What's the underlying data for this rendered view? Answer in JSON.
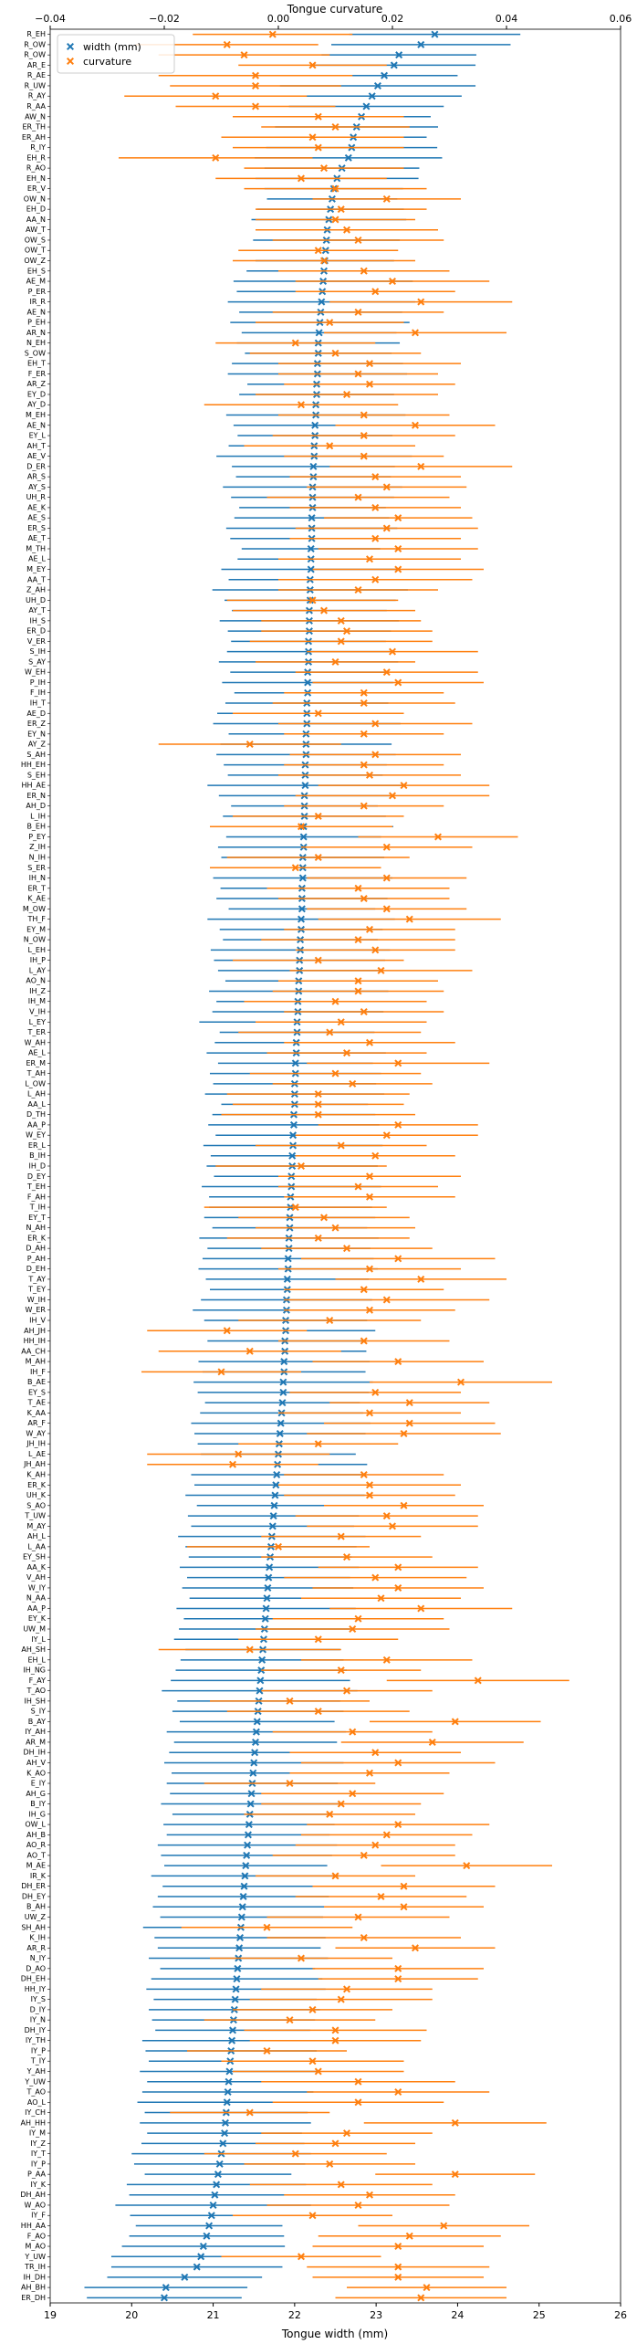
{
  "chart_data": {
    "type": "errorbar",
    "x_label": "Tongue width (mm)",
    "x2_label": "Tongue curvature",
    "legend": "upper left",
    "xlim": [
      19,
      26
    ],
    "xticks": [
      19,
      20,
      21,
      22,
      23,
      24,
      25,
      26
    ],
    "x2lim": [
      -0.04,
      0.06
    ],
    "x2ticks": [
      {
        "value": -0.04,
        "label": "−0.04"
      },
      {
        "value": -0.02,
        "label": "−0.02"
      },
      {
        "value": 0,
        "label": "0.00"
      },
      0.02,
      0.04,
      0.06
    ],
    "categories": [
      "R_EH",
      "R_OW",
      "R_OW",
      "AR_E",
      "R_AE",
      "R_UW",
      "R_AY",
      "R_AA",
      "AW_N",
      "ER_TH",
      "ER_AH",
      "R_IY",
      "EH_R",
      "R_AO",
      "EH_N",
      "ER_V",
      "OW_N",
      "EH_D",
      "AA_N",
      "AW_T",
      "OW_S",
      "OW_T",
      "OW_Z",
      "EH_S",
      "AE_M",
      "P_ER",
      "IR_R",
      "AE_N",
      "P_EH",
      "AR_N",
      "N_EH",
      "S_OW",
      "EH_T",
      "F_ER",
      "AR_Z",
      "EY_D",
      "AY_D",
      "M_EH",
      "AE_N",
      "EY_L",
      "AH_T",
      "AE_V",
      "D_ER",
      "AR_S",
      "AY_S",
      "UH_R",
      "AE_K",
      "AE_S",
      "ER_S",
      "AE_T",
      "M_TH",
      "AE_L",
      "M_EY",
      "AA_T",
      "Z_AH",
      "UH_D",
      "AY_T",
      "IH_S",
      "ER_D",
      "V_ER",
      "S_IH",
      "S_AY",
      "W_EH",
      "P_IH",
      "F_IH",
      "IH_T",
      "AE_D",
      "ER_Z",
      "EY_N",
      "AY_Z",
      "S_AH",
      "HH_EH",
      "S_EH",
      "HH_AE",
      "ER_N",
      "AH_D",
      "L_IH",
      "B_EH",
      "P_EY",
      "Z_IH",
      "N_IH",
      "S_ER",
      "IH_N",
      "ER_T",
      "K_AE",
      "M_OW",
      "TH_F",
      "EY_M",
      "N_OW",
      "L_EH",
      "IH_P",
      "L_AY",
      "AO_N",
      "IH_Z",
      "IH_M",
      "V_IH",
      "L_EY",
      "T_ER",
      "W_AH",
      "AE_L",
      "ER_M",
      "T_AH",
      "L_OW",
      "L_AH",
      "AA_L",
      "D_TH",
      "AA_P",
      "W_EY",
      "ER_L",
      "B_IH",
      "IH_D",
      "D_EY",
      "T_EH",
      "F_AH",
      "T_IH",
      "EY_T",
      "N_AH",
      "ER_K",
      "D_AH",
      "P_AH",
      "D_EH",
      "T_AY",
      "T_EY",
      "W_IH",
      "W_ER",
      "IH_V",
      "AH_JH",
      "HH_IH",
      "AA_CH",
      "M_AH",
      "IH_F",
      "B_AE",
      "EY_S",
      "T_AE",
      "K_AA",
      "AR_F",
      "W_AY",
      "JH_IH",
      "L_AE",
      "JH_AH",
      "K_AH",
      "ER_K",
      "UH_K",
      "S_AO",
      "T_UW",
      "M_AY",
      "AH_L",
      "L_AA",
      "EY_SH",
      "AA_K",
      "V_AH",
      "W_IY",
      "N_AA",
      "AA_P",
      "EY_K",
      "UW_M",
      "IY_L",
      "AH_SH",
      "EH_L",
      "IH_NG",
      "F_AY",
      "T_AO",
      "IH_SH",
      "S_IY",
      "B_AY",
      "IY_AH",
      "AR_M",
      "DH_IH",
      "AH_V",
      "K_AO",
      "E_IY",
      "AH_G",
      "B_IY",
      "IH_G",
      "OW_L",
      "AH_B",
      "AO_R",
      "AO_T",
      "M_AE",
      "IR_K",
      "DH_ER",
      "DH_EY",
      "B_AH",
      "UW_Z",
      "SH_AH",
      "K_IH",
      "AR_R",
      "N_IY",
      "D_AO",
      "DH_EH",
      "HH_IY",
      "IY_S",
      "D_IY",
      "IY_N",
      "DH_IY",
      "IY_TH",
      "IY_P",
      "T_IY",
      "Y_AH",
      "Y_UW",
      "T_AO",
      "AO_L",
      "IY_CH",
      "AH_HH",
      "IY_M",
      "IY_Z",
      "IY_T",
      "IY_P",
      "P_AA",
      "IY_K",
      "DH_AH",
      "W_AO",
      "IY_F",
      "HH_AA",
      "F_AO",
      "M_AO",
      "Y_UW",
      "TR_IH",
      "IH_DH",
      "AH_BH",
      "ER_DH"
    ],
    "series": [
      {
        "name": "width (mm)",
        "color": "#1f77b4",
        "axis": "x",
        "values": [
          23.72,
          23.55,
          23.28,
          23.22,
          23.1,
          23.02,
          22.95,
          22.88,
          22.82,
          22.76,
          22.72,
          22.7,
          22.66,
          22.58,
          22.52,
          22.48,
          22.46,
          22.44,
          22.42,
          22.4,
          22.39,
          22.38,
          22.37,
          22.36,
          22.35,
          22.34,
          22.33,
          22.32,
          22.31,
          22.3,
          22.29,
          22.29,
          22.28,
          22.28,
          22.27,
          22.27,
          22.26,
          22.26,
          22.25,
          22.25,
          22.24,
          22.24,
          22.23,
          22.23,
          22.22,
          22.22,
          22.22,
          22.21,
          22.21,
          22.21,
          22.2,
          22.2,
          22.2,
          22.19,
          22.19,
          22.19,
          22.18,
          22.18,
          22.18,
          22.17,
          22.17,
          22.17,
          22.16,
          22.16,
          22.16,
          22.15,
          22.15,
          22.15,
          22.14,
          22.14,
          22.14,
          22.13,
          22.13,
          22.13,
          22.12,
          22.12,
          22.12,
          22.11,
          22.11,
          22.11,
          22.1,
          22.1,
          22.1,
          22.09,
          22.09,
          22.09,
          22.08,
          22.08,
          22.07,
          22.07,
          22.06,
          22.06,
          22.05,
          22.05,
          22.04,
          22.04,
          22.03,
          22.03,
          22.02,
          22.02,
          22.01,
          22.01,
          22.0,
          22.0,
          22.0,
          21.99,
          21.99,
          21.98,
          21.98,
          21.97,
          21.97,
          21.96,
          21.96,
          21.95,
          21.95,
          21.94,
          21.94,
          21.93,
          21.93,
          21.92,
          21.92,
          21.91,
          21.91,
          21.9,
          21.9,
          21.89,
          21.89,
          21.88,
          21.88,
          21.87,
          21.87,
          21.86,
          21.86,
          21.85,
          21.84,
          21.83,
          21.82,
          21.81,
          21.8,
          21.79,
          21.78,
          21.77,
          21.76,
          21.75,
          21.74,
          21.73,
          21.72,
          21.71,
          21.7,
          21.69,
          21.68,
          21.67,
          21.66,
          21.65,
          21.64,
          21.63,
          21.62,
          21.61,
          21.6,
          21.59,
          21.58,
          21.57,
          21.56,
          21.55,
          21.54,
          21.53,
          21.52,
          21.51,
          21.5,
          21.49,
          21.48,
          21.47,
          21.46,
          21.45,
          21.44,
          21.43,
          21.42,
          21.41,
          21.4,
          21.39,
          21.38,
          21.37,
          21.36,
          21.35,
          21.34,
          21.33,
          21.32,
          21.31,
          21.3,
          21.29,
          21.28,
          21.27,
          21.26,
          21.25,
          21.24,
          21.23,
          21.22,
          21.21,
          21.2,
          21.19,
          21.18,
          21.17,
          21.16,
          21.15,
          21.14,
          21.12,
          21.1,
          21.08,
          21.06,
          21.04,
          21.02,
          21.0,
          20.98,
          20.95,
          20.92,
          20.88,
          20.85,
          20.8,
          20.65,
          20.42,
          20.4
        ],
        "errors": [
          1.05,
          1.1,
          0.95,
          1.0,
          0.9,
          1.2,
          1.1,
          0.95,
          0.85,
          1.0,
          0.9,
          1.05,
          1.15,
          0.95,
          1.0,
          0.85,
          0.8,
          0.9,
          0.95,
          0.85,
          0.9,
          0.8,
          0.85,
          0.95,
          1.1,
          1.05,
          1.15,
          1.0,
          1.1,
          0.95,
          1.0,
          0.9,
          1.05,
          1.1,
          0.85,
          0.95,
          0.9,
          1.1,
          1.0,
          0.95,
          1.05,
          1.2,
          1.0,
          0.95,
          1.1,
          1.0,
          0.9,
          0.95,
          1.05,
          1.0,
          0.85,
          0.9,
          1.1,
          1.0,
          1.2,
          1.05,
          0.95,
          1.1,
          1.0,
          0.95,
          1.0,
          1.1,
          0.95,
          1.05,
          0.9,
          1.0,
          1.1,
          1.15,
          0.95,
          1.05,
          1.1,
          1.0,
          0.95,
          1.2,
          1.05,
          0.9,
          1.0,
          1.1,
          0.95,
          1.05,
          1.0,
          0.95,
          1.1,
          1.0,
          1.05,
          0.9,
          1.15,
          1.0,
          0.95,
          1.1,
          1.05,
          1.0,
          0.9,
          1.1,
          1.0,
          1.05,
          1.2,
          0.95,
          1.0,
          1.1,
          0.95,
          1.05,
          1.0,
          1.1,
          0.9,
          1.0,
          1.05,
          0.95,
          1.1,
          1.0,
          1.05,
          0.95,
          1.1,
          1.0,
          1.0,
          1.05,
          0.95,
          1.1,
          1.0,
          1.05,
          1.1,
          1.0,
          0.95,
          1.05,
          1.15,
          1.0,
          1.1,
          0.95,
          1.0,
          1.05,
          1.0,
          1.1,
          1.05,
          0.95,
          1.0,
          1.1,
          1.05,
          1.0,
          0.95,
          1.1,
          1.05,
          1.0,
          1.1,
          0.95,
          1.05,
          1.0,
          1.15,
          1.05,
          1.0,
          1.1,
          1.0,
          1.05,
          0.95,
          1.1,
          1.0,
          1.05,
          1.1,
          0.95,
          1.0,
          1.05,
          1.1,
          1.2,
          1.0,
          1.05,
          0.95,
          1.1,
          1.0,
          1.05,
          1.1,
          1.0,
          1.05,
          1.0,
          1.1,
          0.95,
          1.05,
          1.0,
          1.1,
          1.05,
          1.0,
          1.15,
          1.0,
          1.05,
          1.1,
          1.0,
          1.2,
          1.05,
          1.0,
          1.1,
          0.95,
          1.05,
          1.1,
          1.0,
          1.05,
          1.0,
          0.95,
          1.1,
          1.05,
          1.0,
          1.1,
          1.0,
          1.05,
          1.1,
          1.0,
          1.05,
          0.95,
          1.0,
          1.1,
          1.05,
          0.9,
          1.1,
          1.05,
          1.2,
          1.0,
          0.9,
          0.95,
          1.0,
          1.1,
          1.05,
          0.95,
          1.0,
          0.95
        ]
      },
      {
        "name": "curvature",
        "color": "#ff7f0e",
        "axis": "x2",
        "values": [
          -0.001,
          -0.009,
          -0.006,
          0.006,
          -0.004,
          -0.004,
          -0.011,
          -0.004,
          0.007,
          0.01,
          0.006,
          0.007,
          -0.011,
          0.008,
          0.004,
          0.01,
          0.019,
          0.011,
          0.01,
          0.012,
          0.014,
          0.007,
          0.008,
          0.015,
          0.02,
          0.017,
          0.025,
          0.014,
          0.009,
          0.024,
          0.003,
          0.01,
          0.016,
          0.014,
          0.016,
          0.012,
          0.004,
          0.015,
          0.024,
          0.015,
          0.009,
          0.015,
          0.025,
          0.017,
          0.019,
          0.014,
          0.017,
          0.021,
          0.019,
          0.017,
          0.021,
          0.016,
          0.021,
          0.017,
          0.014,
          0.006,
          0.008,
          0.011,
          0.012,
          0.011,
          0.02,
          0.01,
          0.019,
          0.021,
          0.015,
          0.015,
          0.007,
          0.017,
          0.015,
          -0.005,
          0.017,
          0.015,
          0.016,
          0.022,
          0.02,
          0.015,
          0.007,
          0.004,
          0.028,
          0.019,
          0.007,
          0.003,
          0.019,
          0.014,
          0.015,
          0.019,
          0.023,
          0.016,
          0.014,
          0.017,
          0.007,
          0.018,
          0.014,
          0.014,
          0.01,
          0.015,
          0.011,
          0.009,
          0.016,
          0.012,
          0.021,
          0.01,
          0.013,
          0.007,
          0.007,
          0.007,
          0.021,
          0.019,
          0.011,
          0.017,
          0.004,
          0.016,
          0.014,
          0.016,
          0.003,
          0.008,
          0.01,
          0.007,
          0.012,
          0.021,
          0.016,
          0.025,
          0.015,
          0.019,
          0.016,
          0.009,
          -0.009,
          0.015,
          -0.005,
          0.021,
          -0.01,
          0.032,
          0.017,
          0.023,
          0.016,
          0.023,
          0.022,
          0.007,
          -0.007,
          -0.008,
          0.015,
          0.016,
          0.016,
          0.022,
          0.019,
          0.02,
          0.011,
          0.0,
          0.012,
          0.021,
          0.017,
          0.021,
          0.018,
          0.025,
          0.014,
          0.013,
          0.007,
          -0.005,
          0.019,
          0.011,
          0.035,
          0.012,
          0.002,
          0.007,
          0.031,
          0.013,
          0.027,
          0.017,
          0.021,
          0.016,
          0.002,
          0.013,
          0.011,
          0.009,
          0.021,
          0.019,
          0.017,
          0.015,
          0.033,
          0.01,
          0.022,
          0.018,
          0.022,
          0.014,
          -0.002,
          0.015,
          0.024,
          0.004,
          0.021,
          0.021,
          0.012,
          0.011,
          0.006,
          0.002,
          0.01,
          0.01,
          -0.002,
          0.006,
          0.007,
          0.014,
          0.021,
          0.014,
          -0.005,
          0.031,
          0.012,
          0.01,
          0.003,
          0.009,
          0.031,
          0.011,
          0.016,
          0.014,
          0.006,
          0.029,
          0.023,
          0.021,
          0.004,
          0.021,
          0.021,
          0.026,
          0.025
        ],
        "errors": [
          0.014,
          0.016,
          0.015,
          0.013,
          0.017,
          0.015,
          0.016,
          0.014,
          0.015,
          0.013,
          0.016,
          0.015,
          0.017,
          0.014,
          0.015,
          0.016,
          0.013,
          0.015,
          0.014,
          0.016,
          0.015,
          0.014,
          0.016,
          0.015,
          0.017,
          0.014,
          0.016,
          0.015,
          0.013,
          0.016,
          0.014,
          0.015,
          0.016,
          0.014,
          0.015,
          0.016,
          0.017,
          0.015,
          0.014,
          0.016,
          0.015,
          0.014,
          0.016,
          0.015,
          0.014,
          0.016,
          0.015,
          0.013,
          0.016,
          0.015,
          0.014,
          0.016,
          0.015,
          0.017,
          0.014,
          0.015,
          0.016,
          0.014,
          0.015,
          0.016,
          0.015,
          0.014,
          0.016,
          0.015,
          0.014,
          0.016,
          0.015,
          0.017,
          0.014,
          0.016,
          0.015,
          0.014,
          0.016,
          0.015,
          0.017,
          0.014,
          0.015,
          0.016,
          0.014,
          0.015,
          0.016,
          0.015,
          0.014,
          0.016,
          0.015,
          0.014,
          0.016,
          0.015,
          0.017,
          0.014,
          0.015,
          0.016,
          0.014,
          0.015,
          0.016,
          0.014,
          0.015,
          0.016,
          0.015,
          0.014,
          0.016,
          0.015,
          0.014,
          0.016,
          0.015,
          0.017,
          0.014,
          0.016,
          0.015,
          0.014,
          0.015,
          0.016,
          0.014,
          0.015,
          0.016,
          0.015,
          0.014,
          0.016,
          0.015,
          0.017,
          0.016,
          0.015,
          0.014,
          0.018,
          0.015,
          0.016,
          0.014,
          0.015,
          0.016,
          0.015,
          0.014,
          0.016,
          0.015,
          0.014,
          0.016,
          0.015,
          0.017,
          0.014,
          0.016,
          0.015,
          0.014,
          0.016,
          0.015,
          0.014,
          0.016,
          0.015,
          0.014,
          0.016,
          0.015,
          0.014,
          0.016,
          0.015,
          0.014,
          0.016,
          0.015,
          0.017,
          0.014,
          0.016,
          0.015,
          0.014,
          0.016,
          0.015,
          0.014,
          0.016,
          0.015,
          0.014,
          0.016,
          0.015,
          0.017,
          0.014,
          0.015,
          0.016,
          0.014,
          0.015,
          0.016,
          0.015,
          0.014,
          0.016,
          0.015,
          0.014,
          0.016,
          0.015,
          0.014,
          0.016,
          0.015,
          0.017,
          0.014,
          0.016,
          0.015,
          0.014,
          0.015,
          0.016,
          0.014,
          0.015,
          0.016,
          0.015,
          0.014,
          0.016,
          0.015,
          0.017,
          0.016,
          0.015,
          0.014,
          0.016,
          0.015,
          0.014,
          0.016,
          0.015,
          0.014,
          0.016,
          0.015,
          0.016,
          0.014,
          0.015,
          0.016,
          0.015,
          0.014,
          0.016,
          0.015,
          0.014,
          0.015
        ]
      }
    ]
  }
}
